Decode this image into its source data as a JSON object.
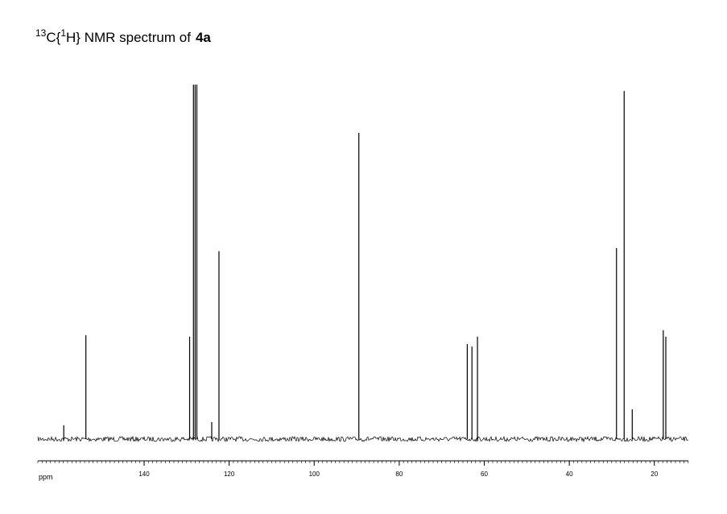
{
  "chart_data": {
    "type": "spectrum",
    "title": [
      "13",
      "C{",
      "1",
      "H} NMR spectrum of",
      "4a"
    ],
    "x_label": "ppm",
    "x": [
      158.9,
      153.7,
      129.3,
      128.4,
      128.0,
      127.6,
      124.1,
      122.4,
      89.5,
      64.0,
      62.9,
      61.6,
      28.9,
      27.1,
      25.2,
      17.9,
      17.3
    ],
    "values": [
      3.9,
      29.3,
      28.9,
      100,
      100,
      100,
      4.8,
      53,
      86.4,
      26.8,
      26.1,
      28.9,
      53.9,
      98.2,
      8.4,
      30.7,
      28.9
    ],
    "color": "#000000",
    "xlim": [
      165,
      12
    ],
    "ylim": [
      0,
      100
    ],
    "xticks": [
      140,
      120,
      100,
      80,
      60,
      40,
      20
    ]
  }
}
